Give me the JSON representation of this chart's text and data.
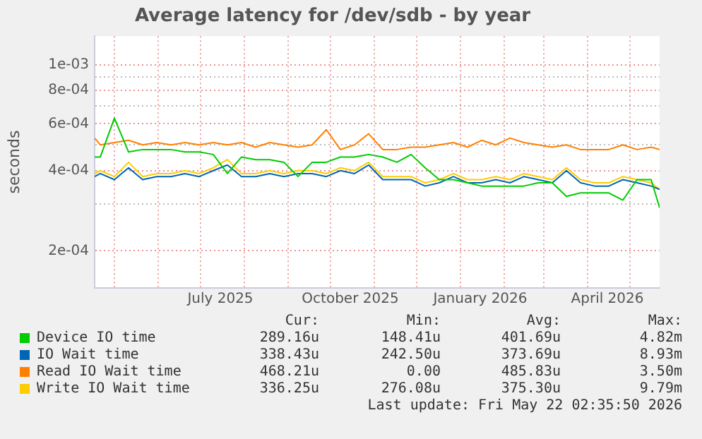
{
  "chart_data": {
    "type": "line",
    "title": "Average latency for /dev/sdb - by year",
    "ylabel": "seconds",
    "x": [
      "2025-04-17",
      "2025-04-21",
      "2025-05-01",
      "2025-05-11",
      "2025-05-21",
      "2025-05-31",
      "2025-06-10",
      "2025-06-20",
      "2025-06-30",
      "2025-07-10",
      "2025-07-20",
      "2025-07-30",
      "2025-08-09",
      "2025-08-19",
      "2025-08-29",
      "2025-09-08",
      "2025-09-18",
      "2025-09-28",
      "2025-10-08",
      "2025-10-18",
      "2025-10-28",
      "2025-11-07",
      "2025-11-17",
      "2025-11-27",
      "2025-12-07",
      "2025-12-17",
      "2025-12-27",
      "2026-01-06",
      "2026-01-16",
      "2026-01-26",
      "2026-02-05",
      "2026-02-15",
      "2026-02-25",
      "2026-03-07",
      "2026-03-17",
      "2026-03-27",
      "2026-04-06",
      "2026-04-16",
      "2026-04-26",
      "2026-05-06",
      "2026-05-16",
      "2026-05-22"
    ],
    "series": [
      {
        "name": "Device IO time",
        "color": "#00cc00",
        "values": [
          0.00045,
          0.00045,
          0.00063,
          0.00047,
          0.00048,
          0.00048,
          0.00048,
          0.00047,
          0.00047,
          0.00046,
          0.00039,
          0.00045,
          0.00044,
          0.00044,
          0.00043,
          0.00038,
          0.00043,
          0.00043,
          0.00045,
          0.00045,
          0.00046,
          0.00045,
          0.00043,
          0.00046,
          0.00041,
          0.00037,
          0.00037,
          0.00036,
          0.00035,
          0.00035,
          0.00035,
          0.00035,
          0.00036,
          0.00036,
          0.00032,
          0.00033,
          0.00033,
          0.00033,
          0.00031,
          0.00037,
          0.00037,
          0.00029
        ]
      },
      {
        "name": "IO Wait time",
        "color": "#0066b3",
        "values": [
          0.00038,
          0.00039,
          0.00037,
          0.00041,
          0.00037,
          0.00038,
          0.00038,
          0.00039,
          0.00038,
          0.0004,
          0.00042,
          0.00038,
          0.00038,
          0.00039,
          0.00038,
          0.00039,
          0.00039,
          0.00038,
          0.0004,
          0.00039,
          0.00042,
          0.00037,
          0.00037,
          0.00037,
          0.00035,
          0.00036,
          0.00038,
          0.00036,
          0.00036,
          0.00037,
          0.00036,
          0.00038,
          0.00037,
          0.00036,
          0.0004,
          0.00036,
          0.00035,
          0.00035,
          0.00037,
          0.00036,
          0.00035,
          0.00034
        ]
      },
      {
        "name": "Read IO Wait time",
        "color": "#ff8000",
        "values": [
          0.00053,
          0.0005,
          0.00051,
          0.00052,
          0.0005,
          0.00051,
          0.0005,
          0.00051,
          0.0005,
          0.00051,
          0.0005,
          0.00051,
          0.00049,
          0.00051,
          0.0005,
          0.00049,
          0.0005,
          0.00057,
          0.00048,
          0.0005,
          0.00055,
          0.00048,
          0.00048,
          0.00049,
          0.00049,
          0.0005,
          0.00051,
          0.00049,
          0.00052,
          0.0005,
          0.00053,
          0.00051,
          0.0005,
          0.00049,
          0.0005,
          0.00048,
          0.00048,
          0.00048,
          0.0005,
          0.00048,
          0.00049,
          0.00048
        ]
      },
      {
        "name": "Write IO Wait time",
        "color": "#ffcc00",
        "values": [
          0.00039,
          0.0004,
          0.00038,
          0.00043,
          0.00038,
          0.00039,
          0.00039,
          0.0004,
          0.00039,
          0.00041,
          0.00044,
          0.00039,
          0.00039,
          0.0004,
          0.00039,
          0.0004,
          0.0004,
          0.00039,
          0.00041,
          0.0004,
          0.00043,
          0.00038,
          0.00038,
          0.00038,
          0.00036,
          0.00037,
          0.00039,
          0.00037,
          0.00037,
          0.00038,
          0.00037,
          0.00039,
          0.00038,
          0.00037,
          0.00041,
          0.00037,
          0.00036,
          0.00036,
          0.00038,
          0.00037,
          0.00036,
          0.00034
        ]
      }
    ],
    "log": "y",
    "ylim": [
      0.000145,
      0.00128
    ],
    "yticks": [
      {
        "value": 0.0002,
        "label": "2e-04"
      },
      {
        "value": 0.0003,
        "label": null
      },
      {
        "value": 0.0004,
        "label": "4e-04"
      },
      {
        "value": 0.0005,
        "label": null
      },
      {
        "value": 0.0006,
        "label": "6e-04"
      },
      {
        "value": 0.0007,
        "label": null
      },
      {
        "value": 0.0008,
        "label": "8e-04"
      },
      {
        "value": 0.0009,
        "label": null
      },
      {
        "value": 0.001,
        "label": "1e-03"
      }
    ],
    "xlim": [
      "2025-04-17",
      "2026-05-22"
    ],
    "xticks": [
      {
        "value": "2025-05-01",
        "label": null
      },
      {
        "value": "2025-06-01",
        "label": null
      },
      {
        "value": "2025-07-01",
        "label": null
      },
      {
        "value": "2025-07-15",
        "label": "July 2025"
      },
      {
        "value": "2025-08-01",
        "label": null
      },
      {
        "value": "2025-09-01",
        "label": null
      },
      {
        "value": "2025-10-01",
        "label": null
      },
      {
        "value": "2025-10-15",
        "label": "October 2025"
      },
      {
        "value": "2025-11-01",
        "label": null
      },
      {
        "value": "2025-12-01",
        "label": null
      },
      {
        "value": "2026-01-01",
        "label": null
      },
      {
        "value": "2026-01-15",
        "label": "January 2026"
      },
      {
        "value": "2026-02-01",
        "label": null
      },
      {
        "value": "2026-03-01",
        "label": null
      },
      {
        "value": "2026-04-01",
        "label": null
      },
      {
        "value": "2026-04-15",
        "label": "April 2026"
      },
      {
        "value": "2026-05-01",
        "label": null
      }
    ],
    "grid": true,
    "legend": "bottom",
    "annotations": [
      "Cur:",
      "Min:",
      "Avg:",
      "Max:",
      "289.16u",
      "148.41u",
      "401.69u",
      "4.82m",
      "338.43u",
      "242.50u",
      "373.69u",
      "8.93m",
      "468.21u",
      "0.00",
      "485.83u",
      "3.50m",
      "336.25u",
      "276.08u",
      "375.30u",
      "9.79m",
      "Last update: Fri May 22 02:35:50 2026"
    ]
  }
}
